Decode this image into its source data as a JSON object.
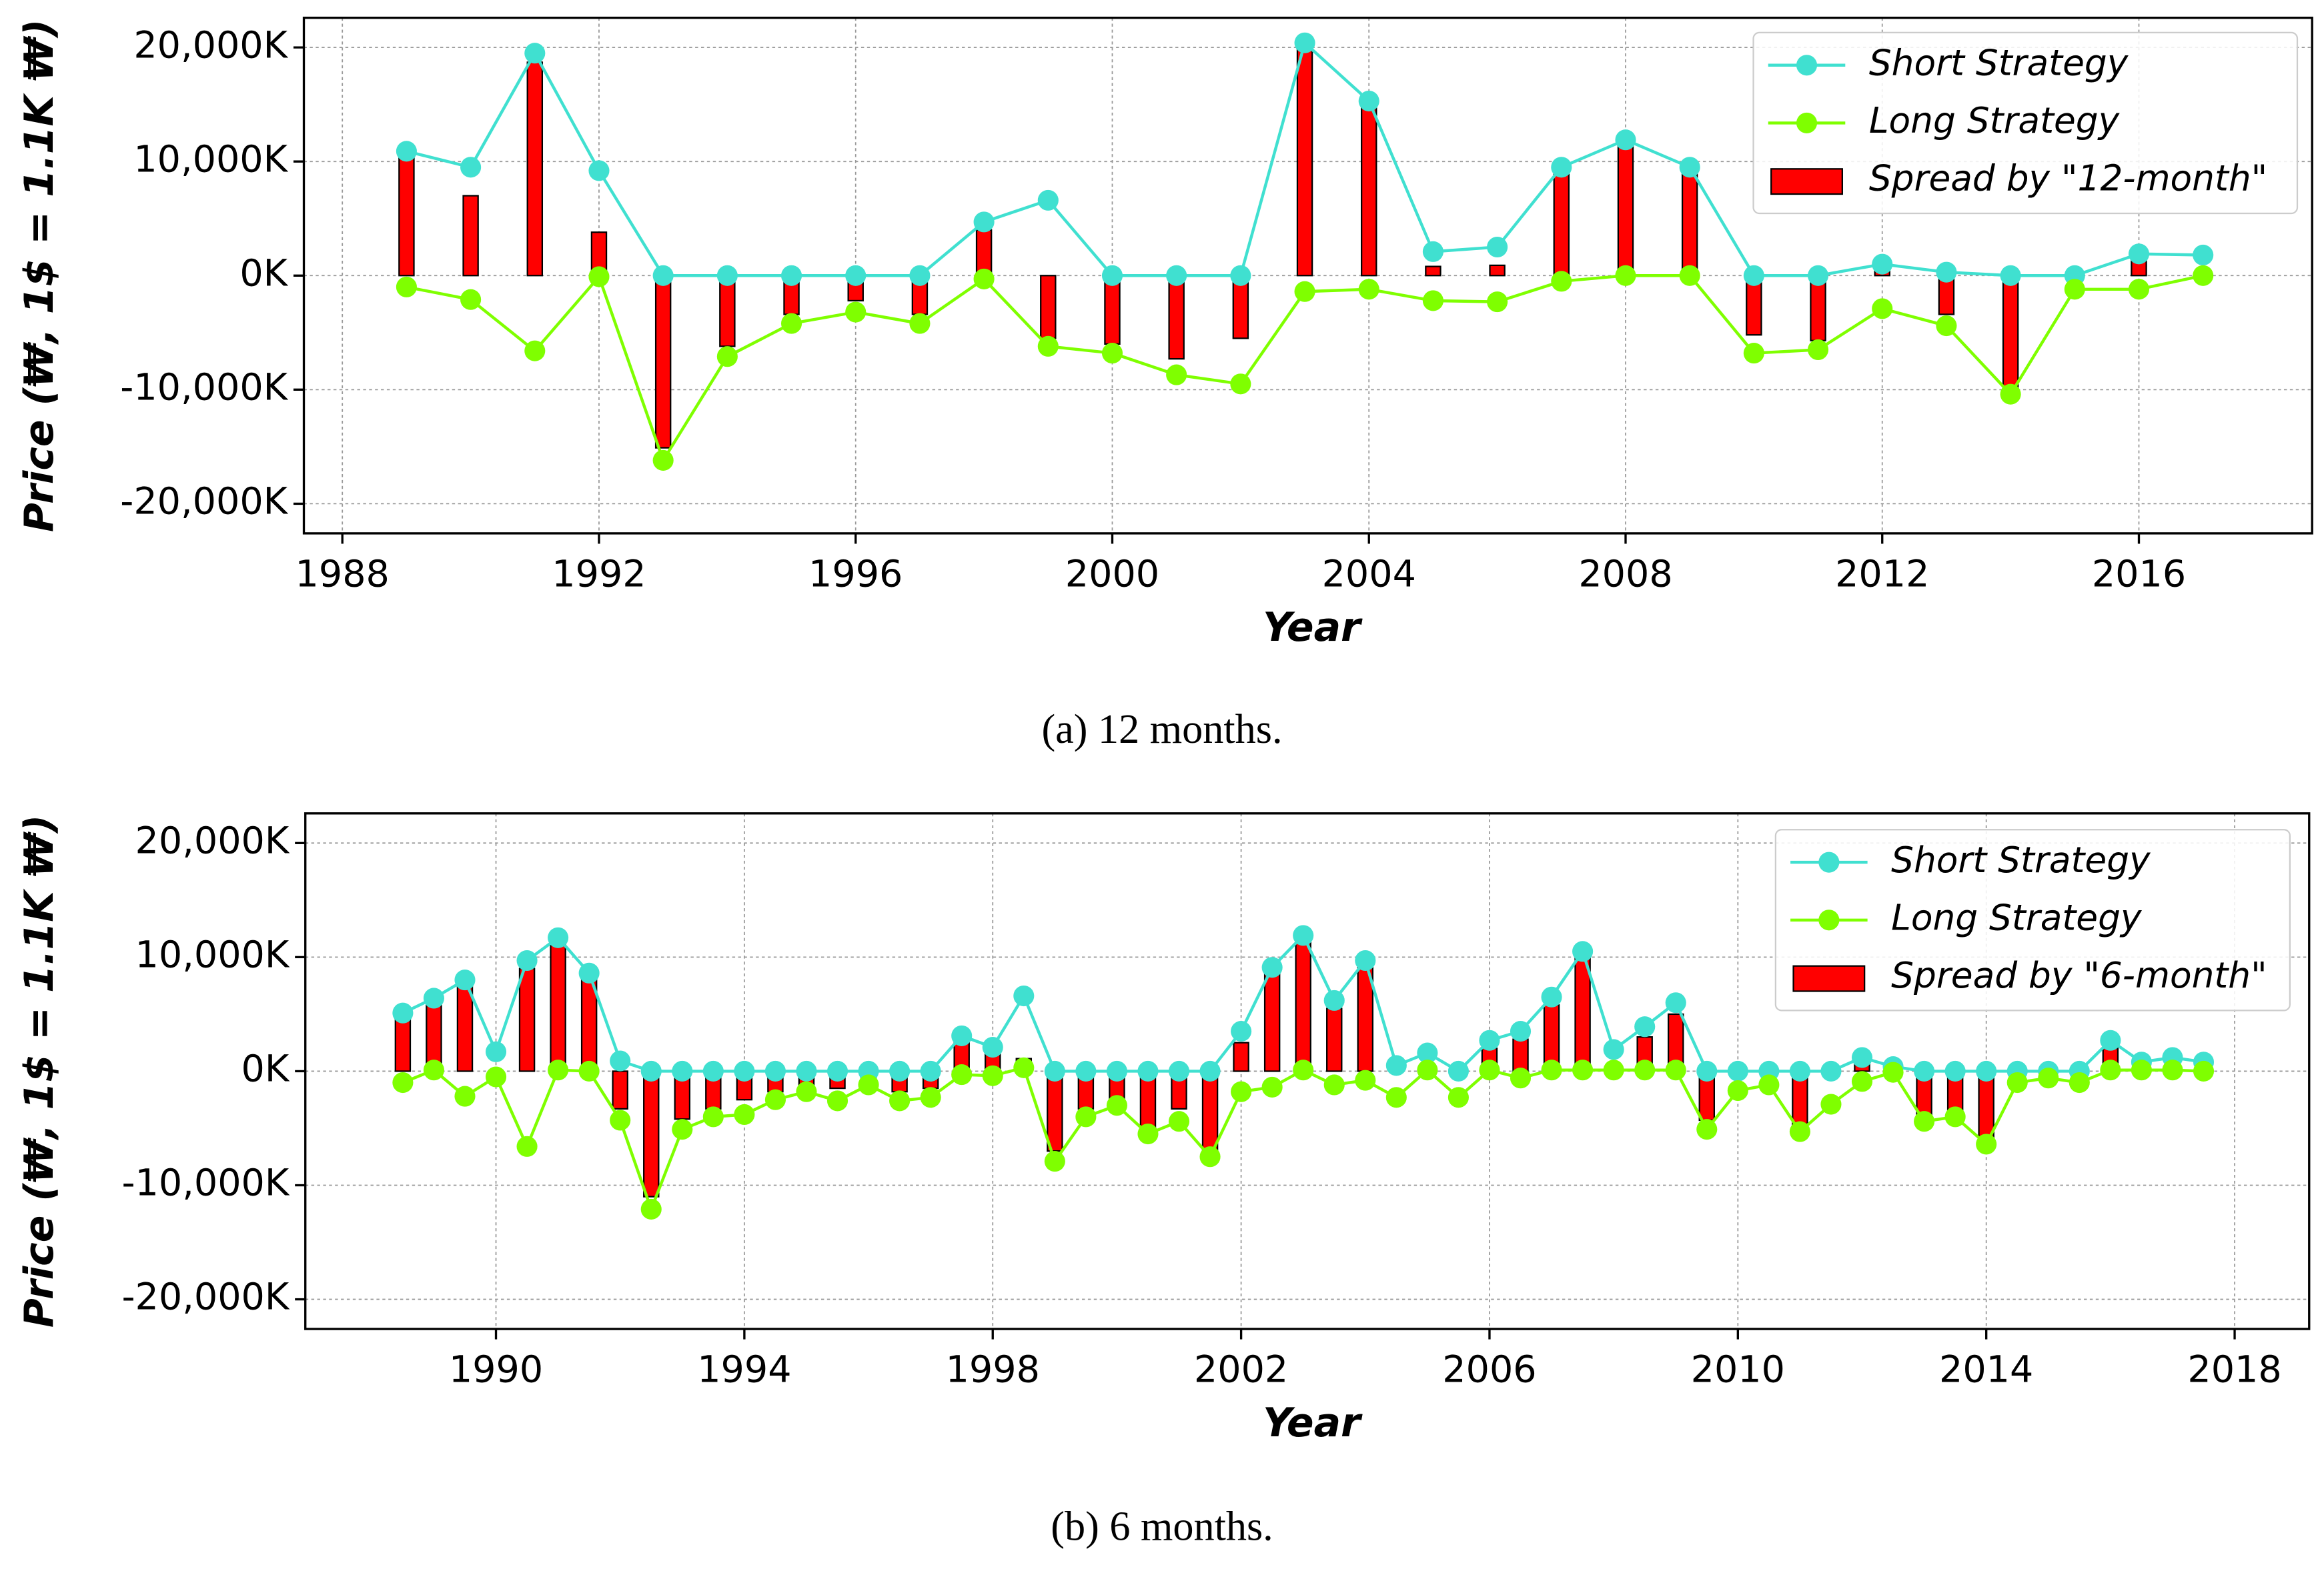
{
  "chart_data": [
    {
      "type": "line",
      "caption": "(a) 12 months.",
      "x_label": "Year",
      "y_label": "Price (₩, 1$ = 1.1K ₩)",
      "x": [
        1989,
        1990,
        1991,
        1992,
        1993,
        1994,
        1995,
        1996,
        1997,
        1998,
        1999,
        2000,
        2001,
        2002,
        2003,
        2004,
        2005,
        2006,
        2007,
        2008,
        2009,
        2010,
        2011,
        2012,
        2013,
        2014,
        2015,
        2016,
        2017
      ],
      "series": [
        {
          "name": "Short Strategy",
          "type": "line",
          "color": "#40e0d0",
          "values": [
            10900,
            9500,
            19500,
            9200,
            0,
            0,
            0,
            0,
            0,
            4700,
            6600,
            0,
            0,
            0,
            20400,
            15300,
            2100,
            2500,
            9500,
            11900,
            9500,
            0,
            0,
            1000,
            300,
            0,
            0,
            1900,
            1800
          ]
        },
        {
          "name": "Long Strategy",
          "type": "line",
          "color": "#7fff00",
          "values": [
            -1000,
            -2100,
            -6600,
            -100,
            -16200,
            -7100,
            -4200,
            -3200,
            -4200,
            -300,
            -6200,
            -6800,
            -8700,
            -9500,
            -1400,
            -1200,
            -2200,
            -2300,
            -500,
            0,
            0,
            -6800,
            -6500,
            -2900,
            -4400,
            -10400,
            -1200,
            -1200,
            0
          ]
        },
        {
          "name": "Spread by \"12-month\"",
          "type": "bar",
          "color": "#ff0000",
          "values": [
            10500,
            7000,
            18700,
            3800,
            -15100,
            -6200,
            -3400,
            -2200,
            -3400,
            4000,
            -5500,
            -6000,
            -7300,
            -5500,
            20000,
            14800,
            800,
            900,
            9000,
            11500,
            9000,
            -5200,
            -5700,
            500,
            -3400,
            -9900,
            0,
            1500,
            0
          ]
        }
      ],
      "xlim": [
        1987.4,
        2018.7
      ],
      "xticks": [
        1988,
        1992,
        1996,
        2000,
        2004,
        2008,
        2012,
        2016
      ],
      "ylim": [
        -22600,
        22600
      ],
      "yticks": [
        {
          "value": -20000,
          "label": "-20,000K"
        },
        {
          "value": -10000,
          "label": "-10,000K"
        },
        {
          "value": 0,
          "label": "0K"
        },
        {
          "value": 10000,
          "label": "10,000K"
        },
        {
          "value": 20000,
          "label": "20,000K"
        }
      ],
      "grid": true,
      "legend": "upper right"
    },
    {
      "type": "line",
      "caption": "(b) 6 months.",
      "x_label": "Year",
      "y_label": "Price (₩, 1$ = 1.1K ₩)",
      "x": [
        1988.5,
        1989,
        1989.5,
        1990,
        1990.5,
        1991,
        1991.5,
        1992,
        1992.5,
        1993,
        1993.5,
        1994,
        1994.5,
        1995,
        1995.5,
        1996,
        1996.5,
        1997,
        1997.5,
        1998,
        1998.5,
        1999,
        1999.5,
        2000,
        2000.5,
        2001,
        2001.5,
        2002,
        2002.5,
        2003,
        2003.5,
        2004,
        2004.5,
        2005,
        2005.5,
        2006,
        2006.5,
        2007,
        2007.5,
        2008,
        2008.5,
        2009,
        2009.5,
        2010,
        2010.5,
        2011,
        2011.5,
        2012,
        2012.5,
        2013,
        2013.5,
        2014,
        2014.5,
        2015,
        2015.5,
        2016,
        2016.5,
        2017,
        2017.5
      ],
      "series": [
        {
          "name": "Short Strategy",
          "type": "line",
          "color": "#40e0d0",
          "values": [
            5100,
            6400,
            8000,
            1700,
            9700,
            11700,
            8600,
            900,
            0,
            0,
            0,
            0,
            0,
            0,
            0,
            0,
            0,
            0,
            3100,
            2100,
            6600,
            0,
            0,
            0,
            0,
            0,
            0,
            3500,
            9100,
            11900,
            6200,
            9700,
            500,
            1600,
            0,
            2700,
            3500,
            6500,
            10500,
            1900,
            3900,
            6000,
            0,
            0,
            0,
            0,
            0,
            1200,
            400,
            0,
            0,
            0,
            0,
            0,
            0,
            2700,
            800,
            1200,
            800
          ]
        },
        {
          "name": "Long Strategy",
          "type": "line",
          "color": "#7fff00",
          "values": [
            -1000,
            100,
            -2200,
            -500,
            -6600,
            100,
            0,
            -4300,
            -12100,
            -5100,
            -4000,
            -3800,
            -2500,
            -1800,
            -2600,
            -1200,
            -2600,
            -2300,
            -300,
            -400,
            300,
            -7900,
            -4000,
            -3000,
            -5500,
            -4400,
            -7500,
            -1800,
            -1400,
            100,
            -1200,
            -800,
            -2300,
            100,
            -2300,
            100,
            -600,
            100,
            100,
            100,
            100,
            100,
            -5100,
            -1700,
            -1200,
            -5300,
            -2900,
            -900,
            -100,
            -4400,
            -4000,
            -6400,
            -1000,
            -600,
            -1000,
            100,
            100,
            100,
            0
          ]
        },
        {
          "name": "Spread by \"6-month\"",
          "type": "bar",
          "color": "#ff0000",
          "values": [
            4700,
            6000,
            7600,
            0,
            9000,
            11200,
            8300,
            -3300,
            -11000,
            -4200,
            -3300,
            -2500,
            -1800,
            -1200,
            -1500,
            -700,
            -1800,
            -1500,
            2500,
            1500,
            1100,
            -7000,
            -3300,
            -2500,
            -5000,
            -3300,
            -7000,
            2500,
            8500,
            11500,
            5500,
            9200,
            0,
            0,
            0,
            2000,
            2800,
            5800,
            10000,
            0,
            3000,
            5000,
            -4300,
            0,
            0,
            -4800,
            0,
            600,
            0,
            -3800,
            -3500,
            -5800,
            0,
            0,
            0,
            2000,
            0,
            0,
            0
          ]
        }
      ],
      "xlim": [
        1986.93,
        2019.2
      ],
      "xticks": [
        1990,
        1994,
        1998,
        2002,
        2006,
        2010,
        2014,
        2018
      ],
      "ylim": [
        -22600,
        22600
      ],
      "yticks": [
        {
          "value": -20000,
          "label": "-20,000K"
        },
        {
          "value": -10000,
          "label": "-10,000K"
        },
        {
          "value": 0,
          "label": "0K"
        },
        {
          "value": 10000,
          "label": "10,000K"
        },
        {
          "value": 20000,
          "label": "20,000K"
        }
      ],
      "grid": true,
      "legend": "upper right"
    }
  ]
}
